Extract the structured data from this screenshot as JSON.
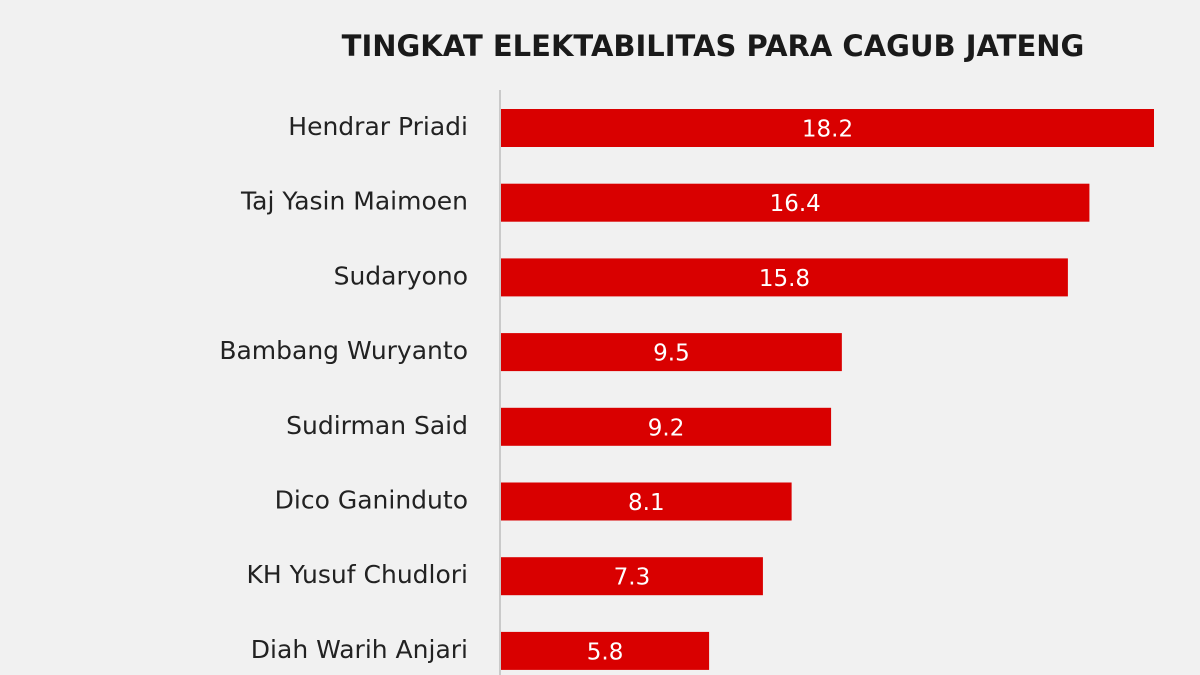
{
  "chart_data": {
    "type": "bar",
    "orientation": "horizontal",
    "title": "TINGKAT ELEKTABILITAS PARA CAGUB JATENG",
    "categories": [
      "Hendrar Priadi",
      "Taj Yasin Maimoen",
      "Sudaryono",
      "Bambang Wuryanto",
      "Sudirman Said",
      "Dico Ganinduto",
      "KH Yusuf Chudlori",
      "Diah Warih Anjari"
    ],
    "values": [
      18.2,
      16.4,
      15.8,
      9.5,
      9.2,
      8.1,
      7.3,
      5.8
    ],
    "color": "#d90000",
    "data_labels": true
  }
}
